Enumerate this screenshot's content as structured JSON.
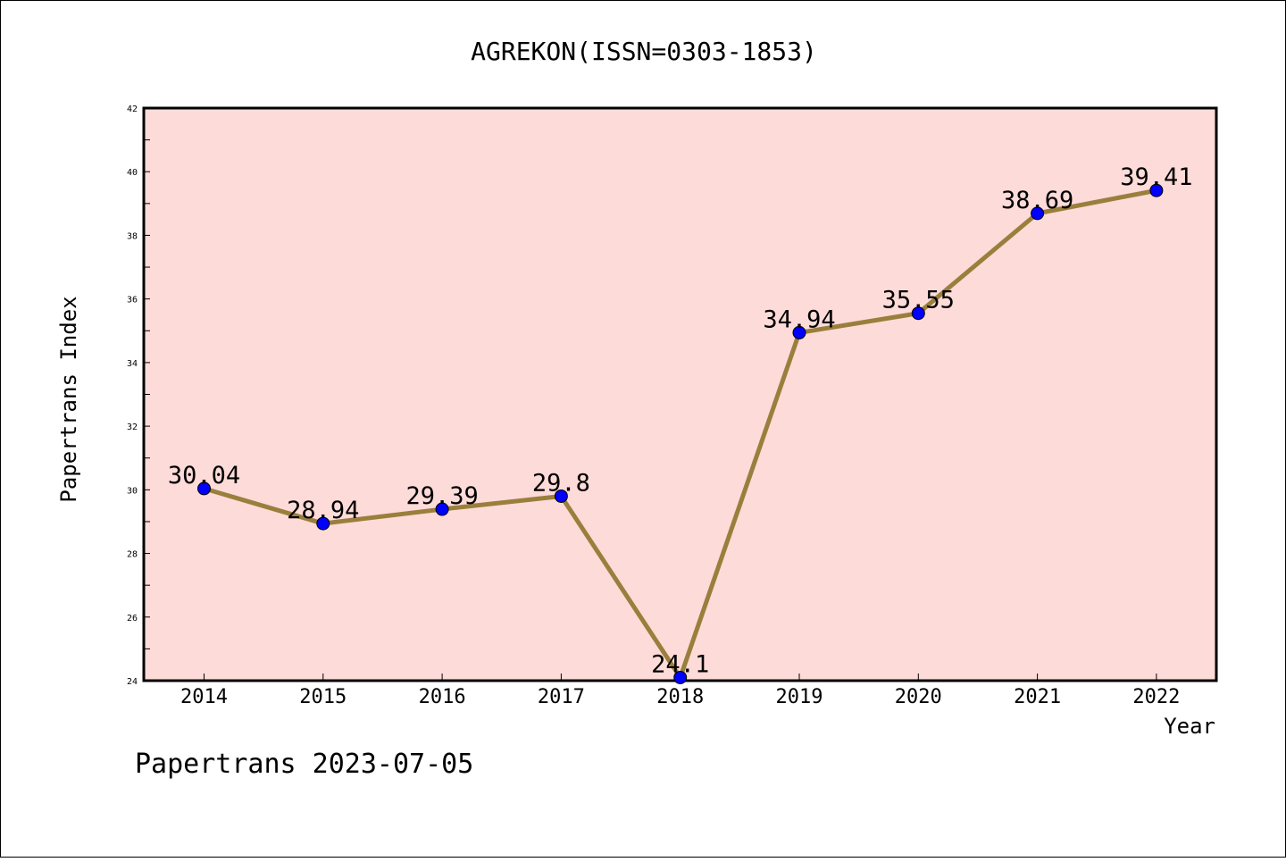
{
  "chart_data": {
    "type": "line",
    "title": "AGREKON(ISSN=0303-1853)",
    "xlabel": "Year",
    "ylabel": "Papertrans Index",
    "footer": "Papertrans 2023-07-05",
    "categories": [
      "2014",
      "2015",
      "2016",
      "2017",
      "2018",
      "2019",
      "2020",
      "2021",
      "2022"
    ],
    "values": [
      30.04,
      28.94,
      29.39,
      29.8,
      24.1,
      34.94,
      35.55,
      38.69,
      39.41
    ],
    "value_labels": [
      "30.04",
      "28.94",
      "29.39",
      "29.8",
      "24.1",
      "34.94",
      "35.55",
      "38.69",
      "39.41"
    ],
    "ylim": [
      24,
      42
    ],
    "yticks": [
      "24",
      "26",
      "28",
      "30",
      "32",
      "34",
      "36",
      "38",
      "40",
      "42"
    ],
    "grid": false,
    "colors": {
      "plot_background": "#fddbd9",
      "line": "#9a7f3c",
      "marker": "#0000ff"
    }
  }
}
